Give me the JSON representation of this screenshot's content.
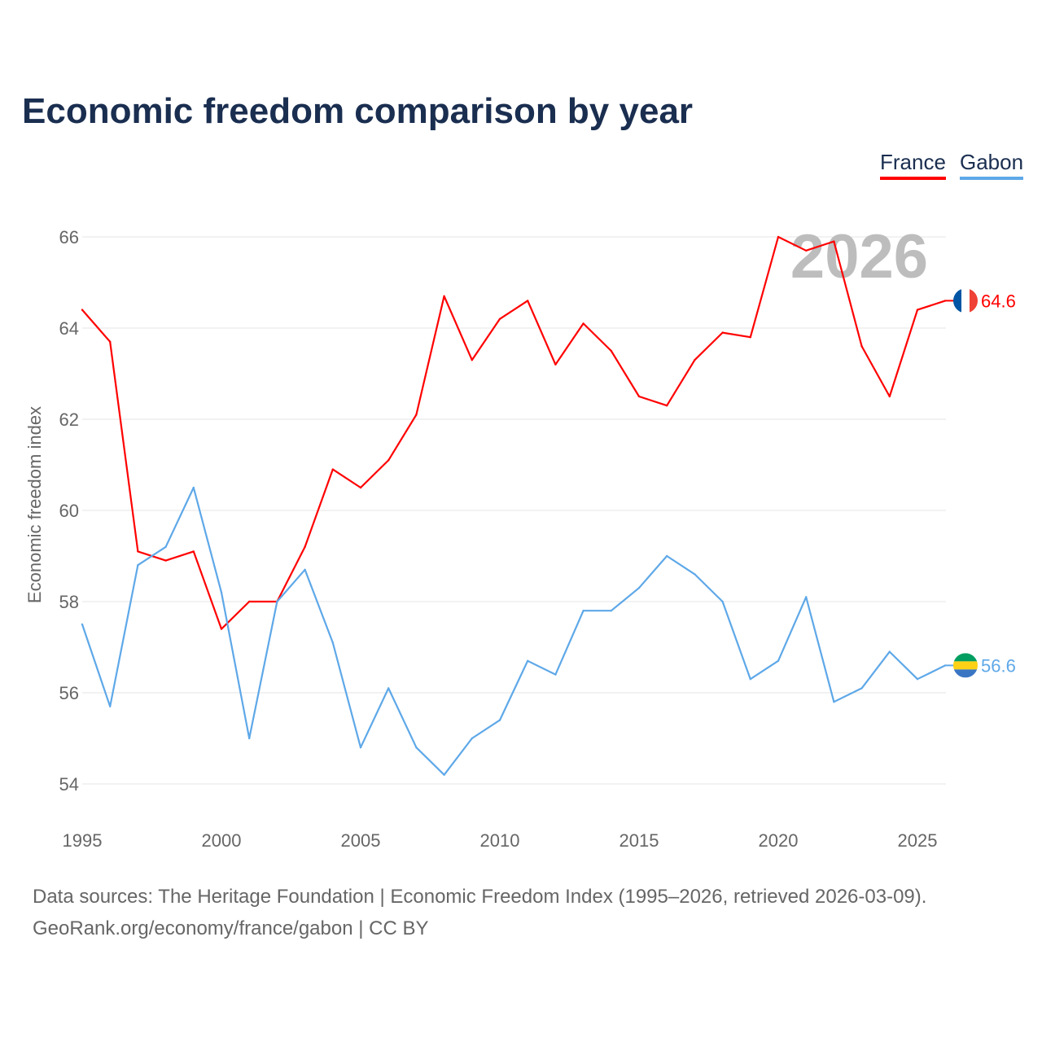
{
  "title": "Economic freedom comparison by year",
  "footer": {
    "line1": "Data sources: The Heritage Foundation | Economic Freedom Index (1995–2026, retrieved 2026-03-09).",
    "line2": "GeoRank.org/economy/france/gabon | CC BY"
  },
  "chart_data": {
    "type": "line",
    "title": "Economic freedom comparison by year",
    "xlabel": "",
    "ylabel": "Economic freedom index",
    "year_watermark": "2026",
    "xlim": [
      1995,
      2026
    ],
    "ylim": [
      53.2,
      67
    ],
    "xticks": [
      "1995",
      "2000",
      "2005",
      "2010",
      "2015",
      "2020",
      "2025"
    ],
    "yticks": [
      "54",
      "56",
      "58",
      "60",
      "62",
      "64",
      "66"
    ],
    "grid": true,
    "legend_position": "top-right",
    "x": [
      1995,
      1996,
      1997,
      1998,
      1999,
      2000,
      2001,
      2002,
      2003,
      2004,
      2005,
      2006,
      2007,
      2008,
      2009,
      2010,
      2011,
      2012,
      2013,
      2014,
      2015,
      2016,
      2017,
      2018,
      2019,
      2020,
      2021,
      2022,
      2023,
      2024,
      2025,
      2026
    ],
    "series": [
      {
        "name": "France",
        "color": "#ff0000",
        "end_label": "64.6",
        "values": [
          64.4,
          63.7,
          59.1,
          58.9,
          59.1,
          57.4,
          58.0,
          58.0,
          59.2,
          60.9,
          60.5,
          61.1,
          62.1,
          64.7,
          63.3,
          64.2,
          64.6,
          63.2,
          64.1,
          63.5,
          62.5,
          62.3,
          63.3,
          63.9,
          63.8,
          66.0,
          65.7,
          65.9,
          63.6,
          62.5,
          64.4,
          64.6
        ]
      },
      {
        "name": "Gabon",
        "color": "#5ea8e8",
        "end_label": "56.6",
        "values": [
          57.5,
          55.7,
          58.8,
          59.2,
          60.5,
          58.2,
          55.0,
          58.0,
          58.7,
          57.1,
          54.8,
          56.1,
          54.8,
          54.2,
          55.0,
          55.4,
          56.7,
          56.4,
          57.8,
          57.8,
          58.3,
          59.0,
          58.6,
          58.0,
          56.3,
          56.7,
          58.1,
          55.8,
          56.1,
          56.9,
          56.3,
          56.6
        ]
      }
    ]
  }
}
